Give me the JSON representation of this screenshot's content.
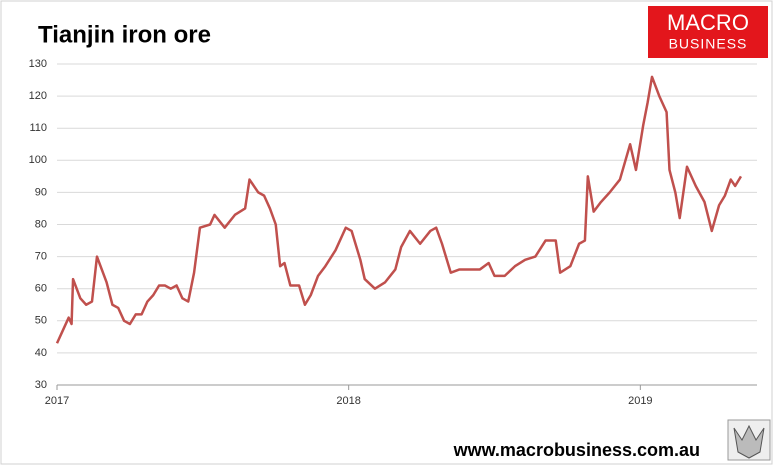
{
  "chart_data": {
    "type": "line",
    "title": "Tianjin iron ore",
    "x": [
      2017.0,
      2017.02,
      2017.04,
      2017.05,
      2017.055,
      2017.08,
      2017.1,
      2017.12,
      2017.137,
      2017.17,
      2017.19,
      2017.21,
      2017.23,
      2017.25,
      2017.27,
      2017.29,
      2017.31,
      2017.33,
      2017.35,
      2017.37,
      2017.39,
      2017.41,
      2017.43,
      2017.45,
      2017.47,
      2017.49,
      2017.525,
      2017.54,
      2017.575,
      2017.61,
      2017.645,
      2017.66,
      2017.69,
      2017.71,
      2017.73,
      2017.75,
      2017.765,
      2017.78,
      2017.8,
      2017.83,
      2017.85,
      2017.87,
      2017.895,
      2017.92,
      2017.955,
      2017.99,
      2018.01,
      2018.04,
      2018.055,
      2018.09,
      2018.125,
      2018.16,
      2018.18,
      2018.21,
      2018.245,
      2018.28,
      2018.3,
      2018.32,
      2018.35,
      2018.38,
      2018.415,
      2018.45,
      2018.48,
      2018.5,
      2018.535,
      2018.57,
      2018.605,
      2018.64,
      2018.675,
      2018.71,
      2018.725,
      2018.76,
      2018.79,
      2018.81,
      2018.82,
      2018.84,
      2018.865,
      2018.895,
      2018.93,
      2018.965,
      2018.985,
      2019.01,
      2019.025,
      2019.04,
      2019.065,
      2019.09,
      2019.1,
      2019.12,
      2019.135,
      2019.16,
      2019.19,
      2019.22,
      2019.245,
      2019.27,
      2019.29,
      2019.31,
      2019.325,
      2019.345
    ],
    "series": [
      {
        "name": "Tianjin iron ore",
        "color": "#c0504d",
        "values": [
          43,
          47,
          51,
          49,
          63,
          57,
          55,
          56,
          70,
          62,
          55,
          54,
          50,
          49,
          52,
          52,
          56,
          58,
          61,
          61,
          60,
          61,
          57,
          56,
          65,
          79,
          80,
          83,
          79,
          83,
          85,
          94,
          90,
          89,
          85,
          80,
          67,
          68,
          61,
          61,
          55,
          58,
          64,
          67,
          72,
          79,
          78,
          69,
          63,
          60,
          62,
          66,
          73,
          78,
          74,
          78,
          79,
          74,
          65,
          66,
          66,
          66,
          68,
          64,
          64,
          67,
          69,
          70,
          75,
          75,
          65,
          67,
          74,
          75,
          95,
          84,
          87,
          90,
          94,
          105,
          97,
          111,
          118,
          126,
          120,
          115,
          97,
          90,
          82,
          98,
          92,
          87,
          78,
          86,
          89,
          94,
          92,
          95
        ]
      }
    ],
    "xlim": [
      2017,
      2019.4
    ],
    "xticks": [
      2017,
      2018,
      2019
    ],
    "ylim": [
      30,
      130
    ],
    "yticks": [
      30,
      40,
      50,
      60,
      70,
      80,
      90,
      100,
      110,
      120,
      130
    ],
    "grid": true
  },
  "logo": {
    "line1": "MACRO",
    "line2": "BUSINESS"
  },
  "footer": "www.macrobusiness.com.au"
}
